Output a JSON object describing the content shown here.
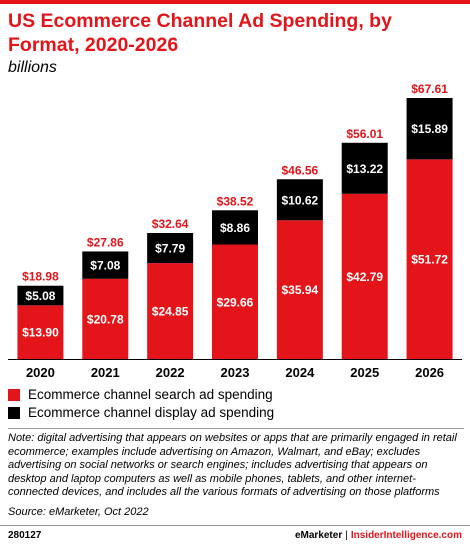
{
  "header": {
    "title": "US Ecommerce Channel Ad Spending, by Format, 2020-2026",
    "subtitle": "billions"
  },
  "chart_data": {
    "type": "bar",
    "stacked": true,
    "categories": [
      "2020",
      "2021",
      "2022",
      "2023",
      "2024",
      "2025",
      "2026"
    ],
    "series": [
      {
        "name": "Ecommerce channel search ad spending",
        "color": "#e3151a",
        "values": [
          13.9,
          20.78,
          24.85,
          29.66,
          35.94,
          42.79,
          51.72
        ],
        "labels": [
          "$13.90",
          "$20.78",
          "$24.85",
          "$29.66",
          "$35.94",
          "$42.79",
          "$51.72"
        ]
      },
      {
        "name": "Ecommerce channel display ad spending",
        "color": "#000000",
        "values": [
          5.08,
          7.08,
          7.79,
          8.86,
          10.62,
          13.22,
          15.89
        ],
        "labels": [
          "$5.08",
          "$7.08",
          "$7.79",
          "$8.86",
          "$10.62",
          "$13.22",
          "$15.89"
        ]
      }
    ],
    "totals": [
      18.98,
      27.86,
      32.64,
      38.52,
      46.56,
      56.01,
      67.61
    ],
    "total_labels": [
      "$18.98",
      "$27.86",
      "$32.64",
      "$38.52",
      "$46.56",
      "$56.01",
      "$67.61"
    ],
    "ylim": [
      0,
      67.61
    ],
    "grid": false,
    "legend_position": "bottom-left"
  },
  "legend": [
    {
      "label": "Ecommerce channel search ad spending",
      "color": "#e3151a"
    },
    {
      "label": "Ecommerce channel display ad spending",
      "color": "#000000"
    }
  ],
  "note": "Note: digital advertising that appears on websites or apps that are primarily engaged in retail ecommerce; examples include advertising on Amazon, Walmart, and eBay; excludes advertising on social networks or search engines; includes advertising that appears on desktop and laptop computers as well as mobile phones, tablets, and other internet-connected devices, and includes all the various formats of advertising on those platforms",
  "source": "Source: eMarketer, Oct 2022",
  "footer": {
    "chart_id": "280127",
    "brand": "eMarketer",
    "separator": "|",
    "site": "InsiderIntelligence.com"
  }
}
